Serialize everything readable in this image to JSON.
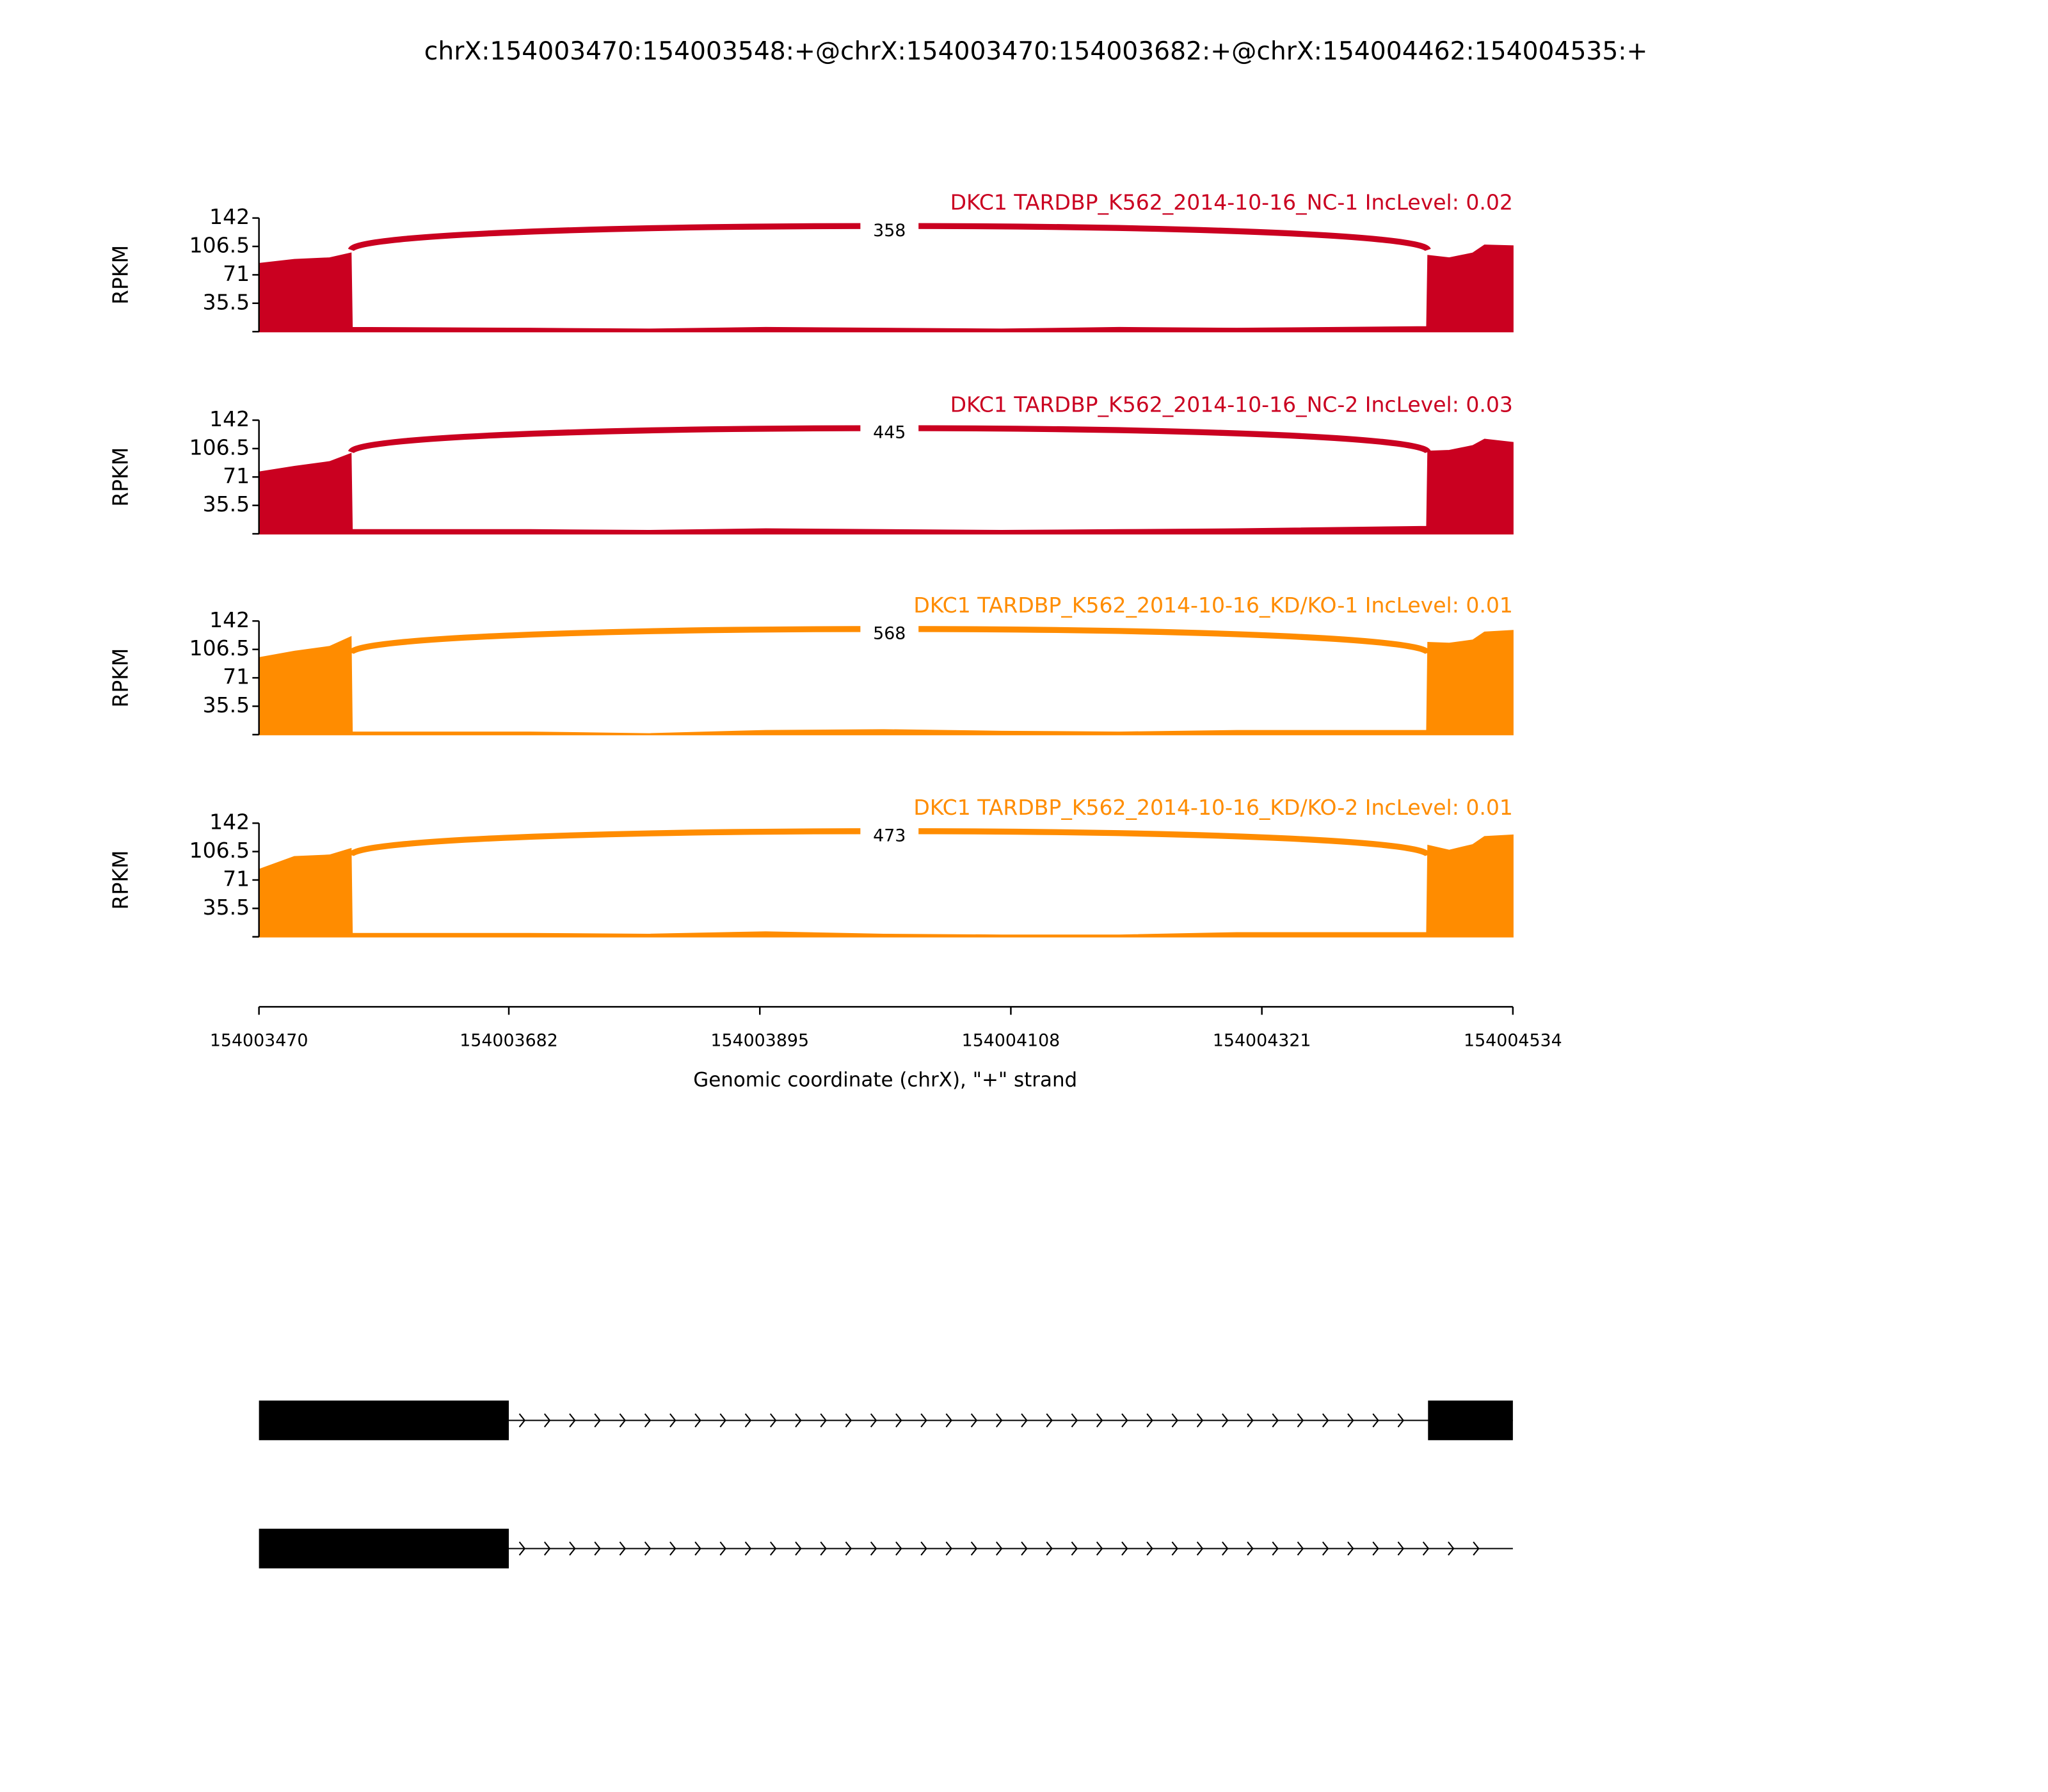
{
  "chart_data": {
    "type": "sashimi",
    "title": "chrX:154003470:154003548:+@chrX:154003470:154003682:+@chrX:154004462:154004535:+",
    "xlabel": "Genomic coordinate (chrX), \"+\" strand",
    "ylabel": "RPKM",
    "xlim": [
      154003470,
      154004534
    ],
    "xticks": [
      154003470,
      154003682,
      154003895,
      154004108,
      154004321,
      154004534
    ],
    "panels": [
      {
        "label": "DKC1 TARDBP_K562_2014-10-16_NC-1 IncLevel: 0.02",
        "color": "#ca0020",
        "ylim": [
          0,
          142
        ],
        "yticks": [
          35.5,
          71,
          106.5,
          142
        ],
        "junction": {
          "start": 154003548,
          "end": 154004462,
          "count": 358
        },
        "coverage": {
          "x": [
            154003470,
            154003500,
            154003530,
            154003548,
            154003549,
            154003700,
            154003800,
            154003900,
            154004000,
            154004100,
            154004200,
            154004300,
            154004461,
            154004462,
            154004480,
            154004500,
            154004510,
            154004534
          ],
          "values": [
            85,
            90,
            92,
            98,
            5,
            4,
            3,
            5,
            4,
            3,
            5,
            4,
            6,
            95,
            92,
            98,
            108,
            107
          ]
        }
      },
      {
        "label": "DKC1 TARDBP_K562_2014-10-16_NC-2 IncLevel: 0.03",
        "color": "#ca0020",
        "ylim": [
          0,
          142
        ],
        "yticks": [
          35.5,
          71,
          106.5,
          142
        ],
        "junction": {
          "start": 154003548,
          "end": 154004462,
          "count": 445
        },
        "coverage": {
          "x": [
            154003470,
            154003500,
            154003530,
            154003548,
            154003549,
            154003700,
            154003800,
            154003900,
            154004000,
            154004100,
            154004200,
            154004300,
            154004461,
            154004462,
            154004480,
            154004500,
            154004510,
            154004534
          ],
          "values": [
            77,
            84,
            90,
            100,
            5,
            5,
            4,
            6,
            5,
            4,
            5,
            6,
            9,
            103,
            104,
            110,
            118,
            114
          ]
        }
      },
      {
        "label": "DKC1 TARDBP_K562_2014-10-16_KD/KO-1 IncLevel: 0.01",
        "color": "#ff8c00",
        "ylim": [
          0,
          142
        ],
        "yticks": [
          35.5,
          71,
          106.5,
          142
        ],
        "junction": {
          "start": 154003548,
          "end": 154004462,
          "count": 568
        },
        "coverage": {
          "x": [
            154003470,
            154003500,
            154003530,
            154003548,
            154003549,
            154003700,
            154003800,
            154003900,
            154004000,
            154004100,
            154004200,
            154004300,
            154004461,
            154004462,
            154004480,
            154004500,
            154004510,
            154004534
          ],
          "values": [
            96,
            104,
            110,
            122,
            3,
            3,
            1,
            5,
            6,
            4,
            3,
            5,
            5,
            115,
            114,
            118,
            128,
            130
          ]
        }
      },
      {
        "label": "DKC1 TARDBP_K562_2014-10-16_KD/KO-2 IncLevel: 0.01",
        "color": "#ff8c00",
        "ylim": [
          0,
          142
        ],
        "yticks": [
          35.5,
          71,
          106.5,
          142
        ],
        "junction": {
          "start": 154003548,
          "end": 154004462,
          "count": 473
        },
        "coverage": {
          "x": [
            154003470,
            154003500,
            154003530,
            154003548,
            154003549,
            154003700,
            154003800,
            154003900,
            154004000,
            154004100,
            154004200,
            154004300,
            154004461,
            154004462,
            154004480,
            154004500,
            154004510,
            154004534
          ],
          "values": [
            84,
            100,
            102,
            110,
            4,
            4,
            3,
            6,
            3,
            2,
            2,
            5,
            5,
            114,
            108,
            115,
            125,
            127
          ]
        }
      }
    ],
    "transcripts": [
      {
        "exons": [
          [
            154003470,
            154003682
          ],
          [
            154004462,
            154004534
          ]
        ]
      },
      {
        "exons": [
          [
            154003470,
            154003682
          ]
        ]
      }
    ]
  }
}
